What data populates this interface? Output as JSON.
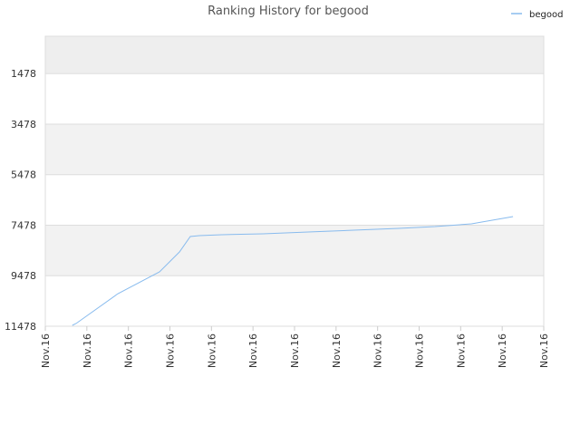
{
  "chart_data": {
    "type": "line",
    "title": "Ranking History for begood",
    "x": [
      0.65,
      0.74,
      1.75,
      2.75,
      3.23,
      3.49,
      3.71,
      4.25,
      5.24,
      6.33,
      7.42,
      8.51,
      9.38,
      10.26,
      11.26
    ],
    "series": [
      {
        "name": "begood",
        "color": "#88bbee",
        "values": [
          11442,
          11370,
          10187,
          9326,
          8537,
          7927,
          7891,
          7855,
          7820,
          7748,
          7676,
          7604,
          7532,
          7425,
          7138
        ]
      }
    ],
    "xlim": [
      0,
      12
    ],
    "xticks": [
      {
        "value": 0,
        "label": "Nov.16"
      },
      {
        "value": 1,
        "label": "Nov.16"
      },
      {
        "value": 2,
        "label": "Nov.16"
      },
      {
        "value": 3,
        "label": "Nov.16"
      },
      {
        "value": 4,
        "label": "Nov.16"
      },
      {
        "value": 5,
        "label": "Nov.16"
      },
      {
        "value": 6,
        "label": "Nov.16"
      },
      {
        "value": 7,
        "label": "Nov.16"
      },
      {
        "value": 8,
        "label": "Nov.16"
      },
      {
        "value": 9,
        "label": "Nov.16"
      },
      {
        "value": 10,
        "label": "Nov.16"
      },
      {
        "value": 11,
        "label": "Nov.16"
      },
      {
        "value": 12,
        "label": "Nov.16"
      }
    ],
    "ylim": [
      11478,
      0
    ],
    "yticks": [
      1478,
      3478,
      5478,
      7478,
      9478,
      11478
    ],
    "grid": true,
    "legend": "top-right"
  }
}
